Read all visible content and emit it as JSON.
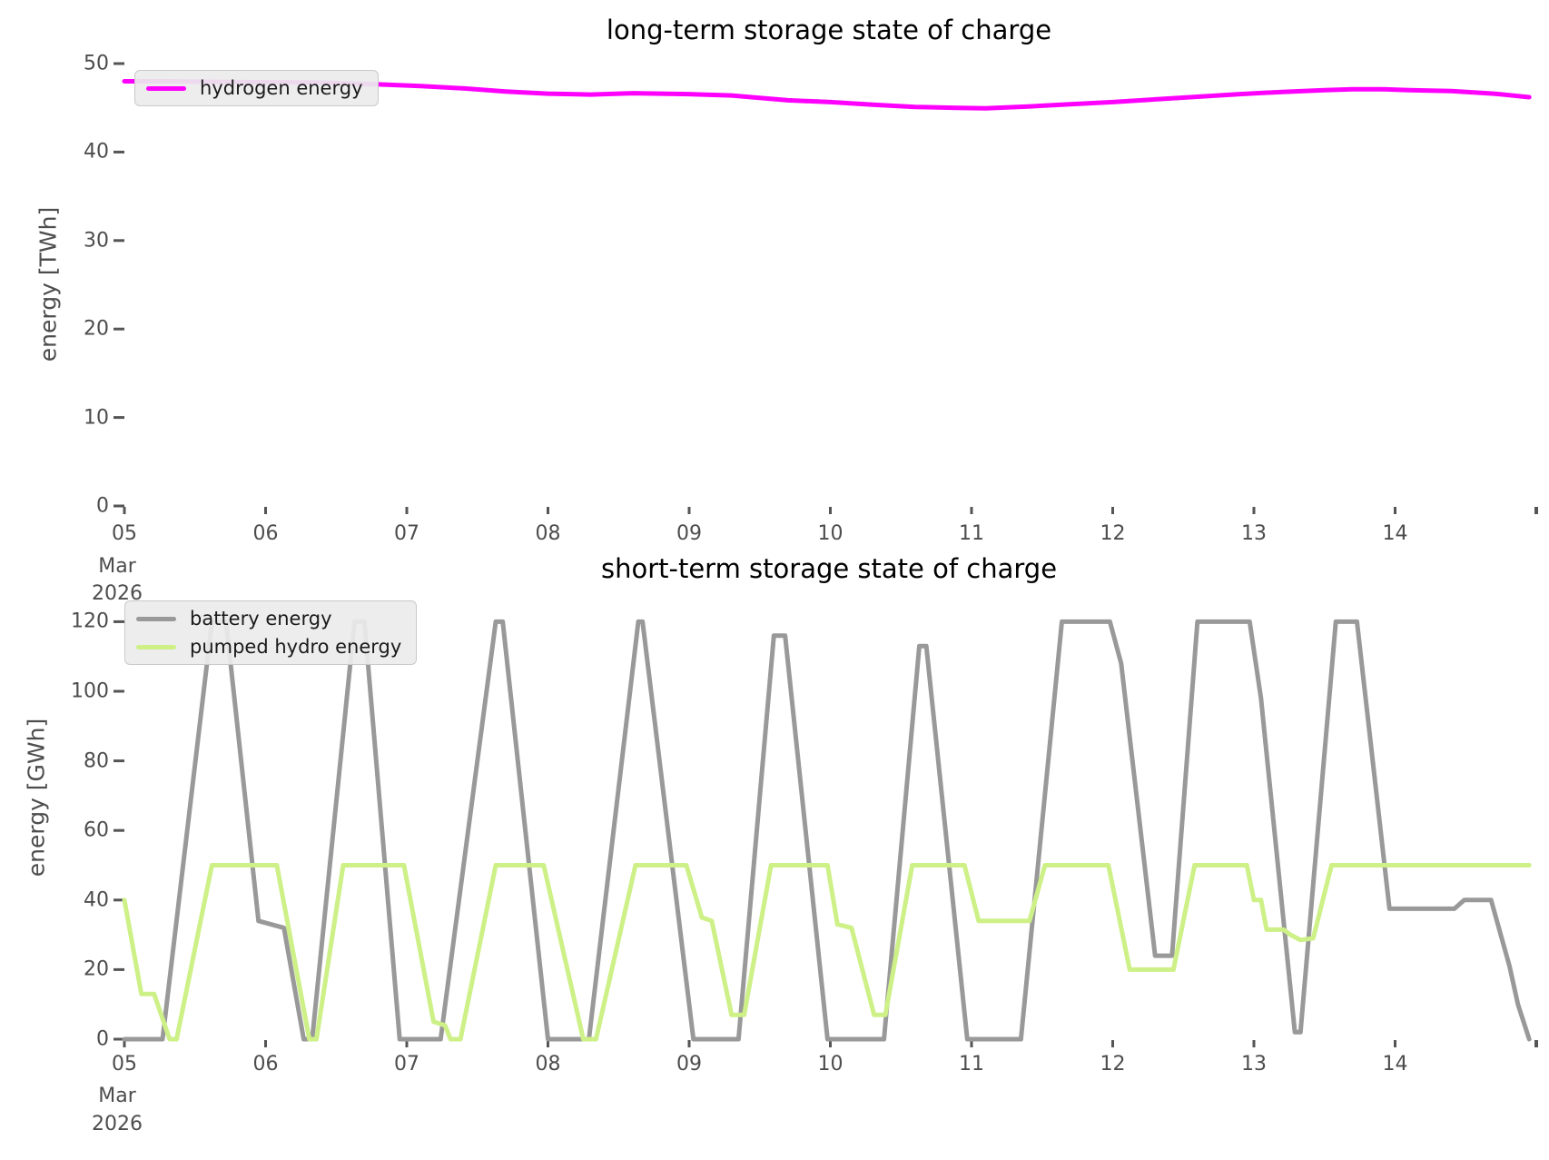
{
  "figure": {
    "background": "#ffffff",
    "tick_color": "#555555",
    "text_color": "#4d4d4d",
    "title_color": "#000000"
  },
  "chart_data": {
    "type": "line",
    "x_unit": "day of month (March 2026)",
    "x_range": [
      5,
      14.95
    ],
    "grid": false,
    "charts": [
      {
        "key": "long_term",
        "title": "long-term storage state of charge",
        "ylabel": "energy [TWh]",
        "ylim": [
          0,
          50
        ],
        "yticks": [
          0,
          10,
          20,
          30,
          40,
          50
        ],
        "xticks": {
          "days": [
            5,
            6,
            7,
            8,
            9,
            10,
            11,
            12,
            13,
            14,
            15
          ],
          "labels": [
            "05",
            "06",
            "07",
            "08",
            "09",
            "10",
            "11",
            "12",
            "13",
            "14",
            ""
          ],
          "sublabels": [
            "Mar",
            "2026"
          ]
        },
        "legend": {
          "position": "upper left",
          "items": [
            {
              "label": "hydrogen energy",
              "series": 0
            }
          ]
        },
        "series": [
          {
            "name": "hydrogen energy",
            "color": "#ff00ff",
            "points": [
              [
                5.0,
                48.0
              ],
              [
                5.3,
                48.0
              ],
              [
                5.6,
                47.95
              ],
              [
                6.0,
                47.9
              ],
              [
                6.4,
                47.85
              ],
              [
                6.8,
                47.65
              ],
              [
                7.1,
                47.45
              ],
              [
                7.4,
                47.2
              ],
              [
                7.7,
                46.85
              ],
              [
                8.0,
                46.6
              ],
              [
                8.3,
                46.5
              ],
              [
                8.6,
                46.65
              ],
              [
                9.0,
                46.55
              ],
              [
                9.3,
                46.4
              ],
              [
                9.7,
                45.85
              ],
              [
                10.0,
                45.65
              ],
              [
                10.3,
                45.35
              ],
              [
                10.6,
                45.1
              ],
              [
                10.9,
                45.0
              ],
              [
                11.1,
                44.95
              ],
              [
                11.4,
                45.15
              ],
              [
                11.7,
                45.4
              ],
              [
                12.0,
                45.65
              ],
              [
                12.3,
                45.95
              ],
              [
                12.6,
                46.25
              ],
              [
                12.9,
                46.55
              ],
              [
                13.2,
                46.8
              ],
              [
                13.5,
                47.0
              ],
              [
                13.7,
                47.1
              ],
              [
                13.9,
                47.1
              ],
              [
                14.1,
                47.0
              ],
              [
                14.4,
                46.9
              ],
              [
                14.7,
                46.6
              ],
              [
                14.95,
                46.2
              ]
            ]
          }
        ]
      },
      {
        "key": "short_term",
        "title": "short-term storage state of charge",
        "ylabel": "energy [GWh]",
        "ylim": [
          0,
          120
        ],
        "yticks": [
          0,
          20,
          40,
          60,
          80,
          100,
          120
        ],
        "xticks": {
          "days": [
            5,
            6,
            7,
            8,
            9,
            10,
            11,
            12,
            13,
            14,
            15
          ],
          "labels": [
            "05",
            "06",
            "07",
            "08",
            "09",
            "10",
            "11",
            "12",
            "13",
            "14",
            ""
          ],
          "sublabels": [
            "Mar",
            "2026"
          ]
        },
        "legend": {
          "position": "upper left",
          "items": [
            {
              "label": "battery energy",
              "series": 0
            },
            {
              "label": "pumped hydro energy",
              "series": 1
            }
          ]
        },
        "series": [
          {
            "name": "battery energy",
            "color": "#999999",
            "points": [
              [
                5.0,
                0
              ],
              [
                5.27,
                0
              ],
              [
                5.62,
                120
              ],
              [
                5.72,
                120
              ],
              [
                5.95,
                34
              ],
              [
                6.13,
                32
              ],
              [
                6.27,
                0
              ],
              [
                6.33,
                0
              ],
              [
                6.63,
                120
              ],
              [
                6.7,
                120
              ],
              [
                6.95,
                0
              ],
              [
                7.24,
                0
              ],
              [
                7.63,
                120
              ],
              [
                7.68,
                120
              ],
              [
                8.0,
                0
              ],
              [
                8.29,
                0
              ],
              [
                8.64,
                120
              ],
              [
                8.67,
                120
              ],
              [
                9.03,
                0
              ],
              [
                9.35,
                0
              ],
              [
                9.6,
                116
              ],
              [
                9.68,
                116
              ],
              [
                9.98,
                0
              ],
              [
                10.38,
                0
              ],
              [
                10.63,
                113
              ],
              [
                10.68,
                113
              ],
              [
                10.97,
                0
              ],
              [
                11.35,
                0
              ],
              [
                11.64,
                120
              ],
              [
                11.98,
                120
              ],
              [
                12.06,
                108
              ],
              [
                12.3,
                24
              ],
              [
                12.42,
                24
              ],
              [
                12.6,
                120
              ],
              [
                12.97,
                120
              ],
              [
                13.05,
                98
              ],
              [
                13.29,
                2
              ],
              [
                13.33,
                2
              ],
              [
                13.58,
                120
              ],
              [
                13.73,
                120
              ],
              [
                13.96,
                37.5
              ],
              [
                14.42,
                37.5
              ],
              [
                14.49,
                40
              ],
              [
                14.68,
                40
              ],
              [
                14.81,
                21
              ],
              [
                14.87,
                10
              ],
              [
                14.95,
                0
              ]
            ]
          },
          {
            "name": "pumped hydro energy",
            "color": "#cdf087",
            "points": [
              [
                5.0,
                40
              ],
              [
                5.12,
                13
              ],
              [
                5.21,
                13
              ],
              [
                5.32,
                0
              ],
              [
                5.37,
                0
              ],
              [
                5.62,
                50
              ],
              [
                6.08,
                50
              ],
              [
                6.31,
                0
              ],
              [
                6.36,
                0
              ],
              [
                6.55,
                50
              ],
              [
                6.98,
                50
              ],
              [
                7.19,
                5
              ],
              [
                7.27,
                4
              ],
              [
                7.31,
                0
              ],
              [
                7.38,
                0
              ],
              [
                7.63,
                50
              ],
              [
                7.97,
                50
              ],
              [
                8.25,
                0
              ],
              [
                8.34,
                0
              ],
              [
                8.62,
                50
              ],
              [
                8.98,
                50
              ],
              [
                9.09,
                35
              ],
              [
                9.16,
                34
              ],
              [
                9.3,
                7
              ],
              [
                9.39,
                7
              ],
              [
                9.58,
                50
              ],
              [
                9.98,
                50
              ],
              [
                10.05,
                33
              ],
              [
                10.15,
                32
              ],
              [
                10.31,
                7
              ],
              [
                10.39,
                7
              ],
              [
                10.58,
                50
              ],
              [
                10.95,
                50
              ],
              [
                11.05,
                34
              ],
              [
                11.41,
                34
              ],
              [
                11.52,
                50
              ],
              [
                11.97,
                50
              ],
              [
                12.12,
                20
              ],
              [
                12.43,
                20
              ],
              [
                12.58,
                50
              ],
              [
                12.95,
                50
              ],
              [
                13.0,
                40
              ],
              [
                13.05,
                40
              ],
              [
                13.09,
                31.5
              ],
              [
                13.21,
                31.5
              ],
              [
                13.26,
                30
              ],
              [
                13.33,
                28.5
              ],
              [
                13.42,
                29
              ],
              [
                13.55,
                50
              ],
              [
                14.95,
                50
              ]
            ]
          }
        ]
      }
    ]
  }
}
